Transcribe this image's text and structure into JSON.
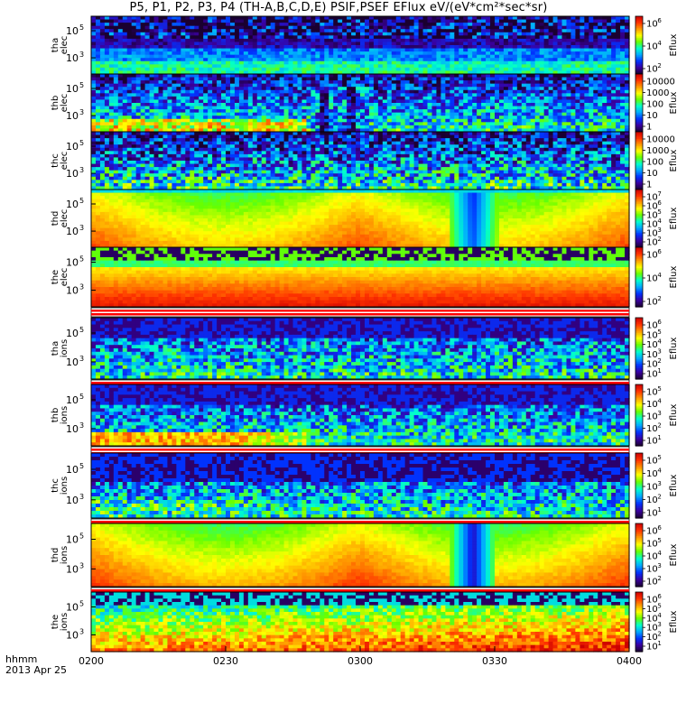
{
  "title": "P5, P1, P2, P3, P4 (TH-A,B,C,D,E) PSIF,PSEF EFlux eV/(eV*cm²*sec*sr)",
  "chart_data": {
    "type": "heatmap",
    "title": "P5, P1, P2, P3, P4 (TH-A,B,C,D,E) PSIF,PSEF EFlux eV/(eV*cm²*sec*sr)",
    "x_ticks": [
      "0200",
      "0230",
      "0300",
      "0330",
      "0400"
    ],
    "x_header": [
      "hhmm",
      "2013 Apr 25"
    ],
    "colorbar_unit": "Eflux",
    "colormap": [
      "#1a0030",
      "#3a00a0",
      "#0033ff",
      "#00aaff",
      "#00ffcc",
      "#66ff00",
      "#ffff00",
      "#ff9900",
      "#ff3300",
      "#cc0000"
    ],
    "panels": [
      {
        "id": "tha-elec",
        "label": [
          "tha",
          "elec"
        ],
        "y_ticks": [
          {
            "m": "10",
            "e": "5"
          },
          {
            "m": "10",
            "e": "3"
          }
        ],
        "cb_ticks": [
          {
            "m": "10",
            "e": "6"
          },
          {
            "m": "10",
            "e": "4"
          },
          {
            "m": "10",
            "e": "2"
          }
        ],
        "base": 0.22,
        "vgrad": 0.5,
        "noise": 0.35,
        "ptype": "elec_a",
        "sep": false
      },
      {
        "id": "thb-elec",
        "label": [
          "thb",
          "elec"
        ],
        "y_ticks": [
          {
            "m": "10",
            "e": "5"
          },
          {
            "m": "10",
            "e": "3"
          }
        ],
        "cb_ticks": [
          {
            "m": "10000",
            "e": ""
          },
          {
            "m": "1000",
            "e": ""
          },
          {
            "m": "100",
            "e": ""
          },
          {
            "m": "10",
            "e": ""
          },
          {
            "m": "1",
            "e": ""
          }
        ],
        "base": 0.25,
        "vgrad": 0.55,
        "noise": 0.4,
        "ptype": "elec_b",
        "sep": false
      },
      {
        "id": "thc-elec",
        "label": [
          "thc",
          "elec"
        ],
        "y_ticks": [
          {
            "m": "10",
            "e": "5"
          },
          {
            "m": "10",
            "e": "3"
          }
        ],
        "cb_ticks": [
          {
            "m": "10000",
            "e": ""
          },
          {
            "m": "1000",
            "e": ""
          },
          {
            "m": "100",
            "e": ""
          },
          {
            "m": "10",
            "e": ""
          },
          {
            "m": "1",
            "e": ""
          }
        ],
        "base": 0.2,
        "vgrad": 0.45,
        "noise": 0.4,
        "ptype": "elec_c",
        "sep": false
      },
      {
        "id": "thd-elec",
        "label": [
          "thd",
          "elec"
        ],
        "y_ticks": [
          {
            "m": "10",
            "e": "5"
          },
          {
            "m": "10",
            "e": "3"
          }
        ],
        "cb_ticks": [
          {
            "m": "10",
            "e": "7"
          },
          {
            "m": "10",
            "e": "6"
          },
          {
            "m": "10",
            "e": "5"
          },
          {
            "m": "10",
            "e": "4"
          },
          {
            "m": "10",
            "e": "3"
          },
          {
            "m": "10",
            "e": "2"
          }
        ],
        "base": 0.72,
        "vgrad": 0.25,
        "noise": 0.05,
        "ptype": "elec_d",
        "sep": false
      },
      {
        "id": "the-elec",
        "label": [
          "the",
          "elec"
        ],
        "y_ticks": [
          {
            "m": "10",
            "e": "5"
          },
          {
            "m": "10",
            "e": "3"
          }
        ],
        "cb_ticks": [
          {
            "m": "10",
            "e": "6"
          },
          {
            "m": "10",
            "e": "4"
          },
          {
            "m": "10",
            "e": "2"
          }
        ],
        "base": 0.75,
        "vgrad": 0.35,
        "noise": 0.05,
        "ptype": "elec_e",
        "sep": true
      },
      {
        "id": "tha-ions",
        "label": [
          "tha",
          "ions"
        ],
        "y_ticks": [
          {
            "m": "10",
            "e": "5"
          },
          {
            "m": "10",
            "e": "3"
          }
        ],
        "cb_ticks": [
          {
            "m": "10",
            "e": "6"
          },
          {
            "m": "10",
            "e": "5"
          },
          {
            "m": "10",
            "e": "4"
          },
          {
            "m": "10",
            "e": "3"
          },
          {
            "m": "10",
            "e": "2"
          },
          {
            "m": "10",
            "e": "1"
          }
        ],
        "base": 0.22,
        "vgrad": 0.3,
        "noise": 0.35,
        "ptype": "ions_a",
        "sep": true
      },
      {
        "id": "thb-ions",
        "label": [
          "thb",
          "ions"
        ],
        "y_ticks": [
          {
            "m": "10",
            "e": "5"
          },
          {
            "m": "10",
            "e": "3"
          }
        ],
        "cb_ticks": [
          {
            "m": "10",
            "e": "5"
          },
          {
            "m": "10",
            "e": "4"
          },
          {
            "m": "10",
            "e": "3"
          },
          {
            "m": "10",
            "e": "2"
          },
          {
            "m": "10",
            "e": "1"
          }
        ],
        "base": 0.22,
        "vgrad": 0.45,
        "noise": 0.4,
        "ptype": "ions_b",
        "sep": true
      },
      {
        "id": "thc-ions",
        "label": [
          "thc",
          "ions"
        ],
        "y_ticks": [
          {
            "m": "10",
            "e": "5"
          },
          {
            "m": "10",
            "e": "3"
          }
        ],
        "cb_ticks": [
          {
            "m": "10",
            "e": "5"
          },
          {
            "m": "10",
            "e": "4"
          },
          {
            "m": "10",
            "e": "3"
          },
          {
            "m": "10",
            "e": "2"
          },
          {
            "m": "10",
            "e": "1"
          }
        ],
        "base": 0.18,
        "vgrad": 0.4,
        "noise": 0.4,
        "ptype": "ions_c",
        "sep": true
      },
      {
        "id": "thd-ions",
        "label": [
          "thd",
          "ions"
        ],
        "y_ticks": [
          {
            "m": "10",
            "e": "5"
          },
          {
            "m": "10",
            "e": "3"
          }
        ],
        "cb_ticks": [
          {
            "m": "10",
            "e": "6"
          },
          {
            "m": "10",
            "e": "5"
          },
          {
            "m": "10",
            "e": "4"
          },
          {
            "m": "10",
            "e": "3"
          },
          {
            "m": "10",
            "e": "2"
          }
        ],
        "base": 0.72,
        "vgrad": 0.2,
        "noise": 0.05,
        "ptype": "ions_d",
        "sep": true
      },
      {
        "id": "the-ions",
        "label": [
          "the",
          "ions"
        ],
        "y_ticks": [
          {
            "m": "10",
            "e": "5"
          },
          {
            "m": "10",
            "e": "3"
          }
        ],
        "cb_ticks": [
          {
            "m": "10",
            "e": "6"
          },
          {
            "m": "10",
            "e": "5"
          },
          {
            "m": "10",
            "e": "4"
          },
          {
            "m": "10",
            "e": "3"
          },
          {
            "m": "10",
            "e": "2"
          },
          {
            "m": "10",
            "e": "1"
          }
        ],
        "base": 0.5,
        "vgrad": 0.35,
        "noise": 0.25,
        "ptype": "ions_e",
        "sep": false
      }
    ]
  }
}
